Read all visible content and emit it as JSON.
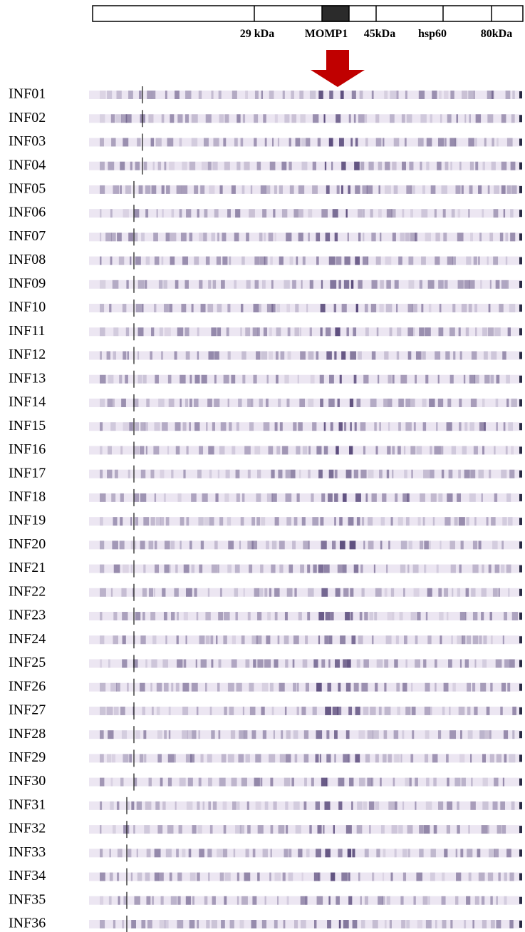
{
  "markers": [
    "29 kDa",
    "MOMP1",
    "45kDa",
    "hsp60",
    "80kDa"
  ],
  "lanes": [
    "INF01",
    "INF02",
    "INF03",
    "INF04",
    "INF05",
    "INF06",
    "INF07",
    "INF08",
    "INF09",
    "INF10",
    "INF11",
    "INF12",
    "INF13",
    "INF14",
    "INF15",
    "INF16",
    "INF17",
    "INF18",
    "INF19",
    "INF20",
    "INF21",
    "INF22",
    "INF23",
    "INF24",
    "INF25",
    "INF26",
    "INF27",
    "INF28",
    "INF29",
    "INF30",
    "INF31",
    "INF32",
    "INF33",
    "INF34",
    "INF35",
    "INF36"
  ]
}
